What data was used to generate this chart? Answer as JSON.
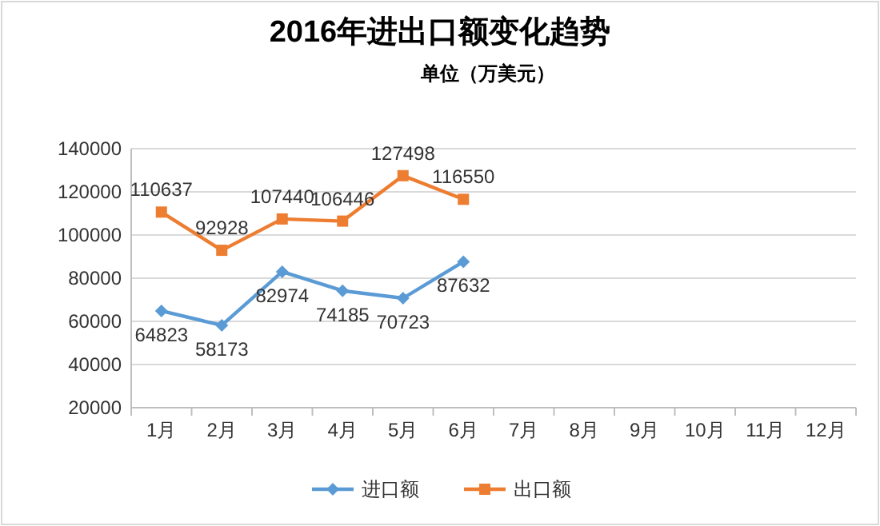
{
  "chart_data": {
    "type": "line",
    "title": "2016年进出口额变化趋势",
    "subtitle": "单位（万美元）",
    "categories": [
      "1月",
      "2月",
      "3月",
      "4月",
      "5月",
      "6月",
      "7月",
      "8月",
      "9月",
      "10月",
      "11月",
      "12月"
    ],
    "series": [
      {
        "name": "进口额",
        "color": "#5b9bd5",
        "marker": "diamond",
        "values": [
          64823,
          58173,
          82974,
          74185,
          70723,
          87632,
          null,
          null,
          null,
          null,
          null,
          null
        ]
      },
      {
        "name": "出口额",
        "color": "#ed7d31",
        "marker": "square",
        "values": [
          110637,
          92928,
          107440,
          106446,
          127498,
          116550,
          null,
          null,
          null,
          null,
          null,
          null
        ]
      }
    ],
    "ylim": [
      20000,
      140000
    ],
    "yticks": [
      20000,
      40000,
      60000,
      80000,
      100000,
      120000,
      140000
    ],
    "grid": "y",
    "legend": "bottom",
    "data_labels": true
  }
}
